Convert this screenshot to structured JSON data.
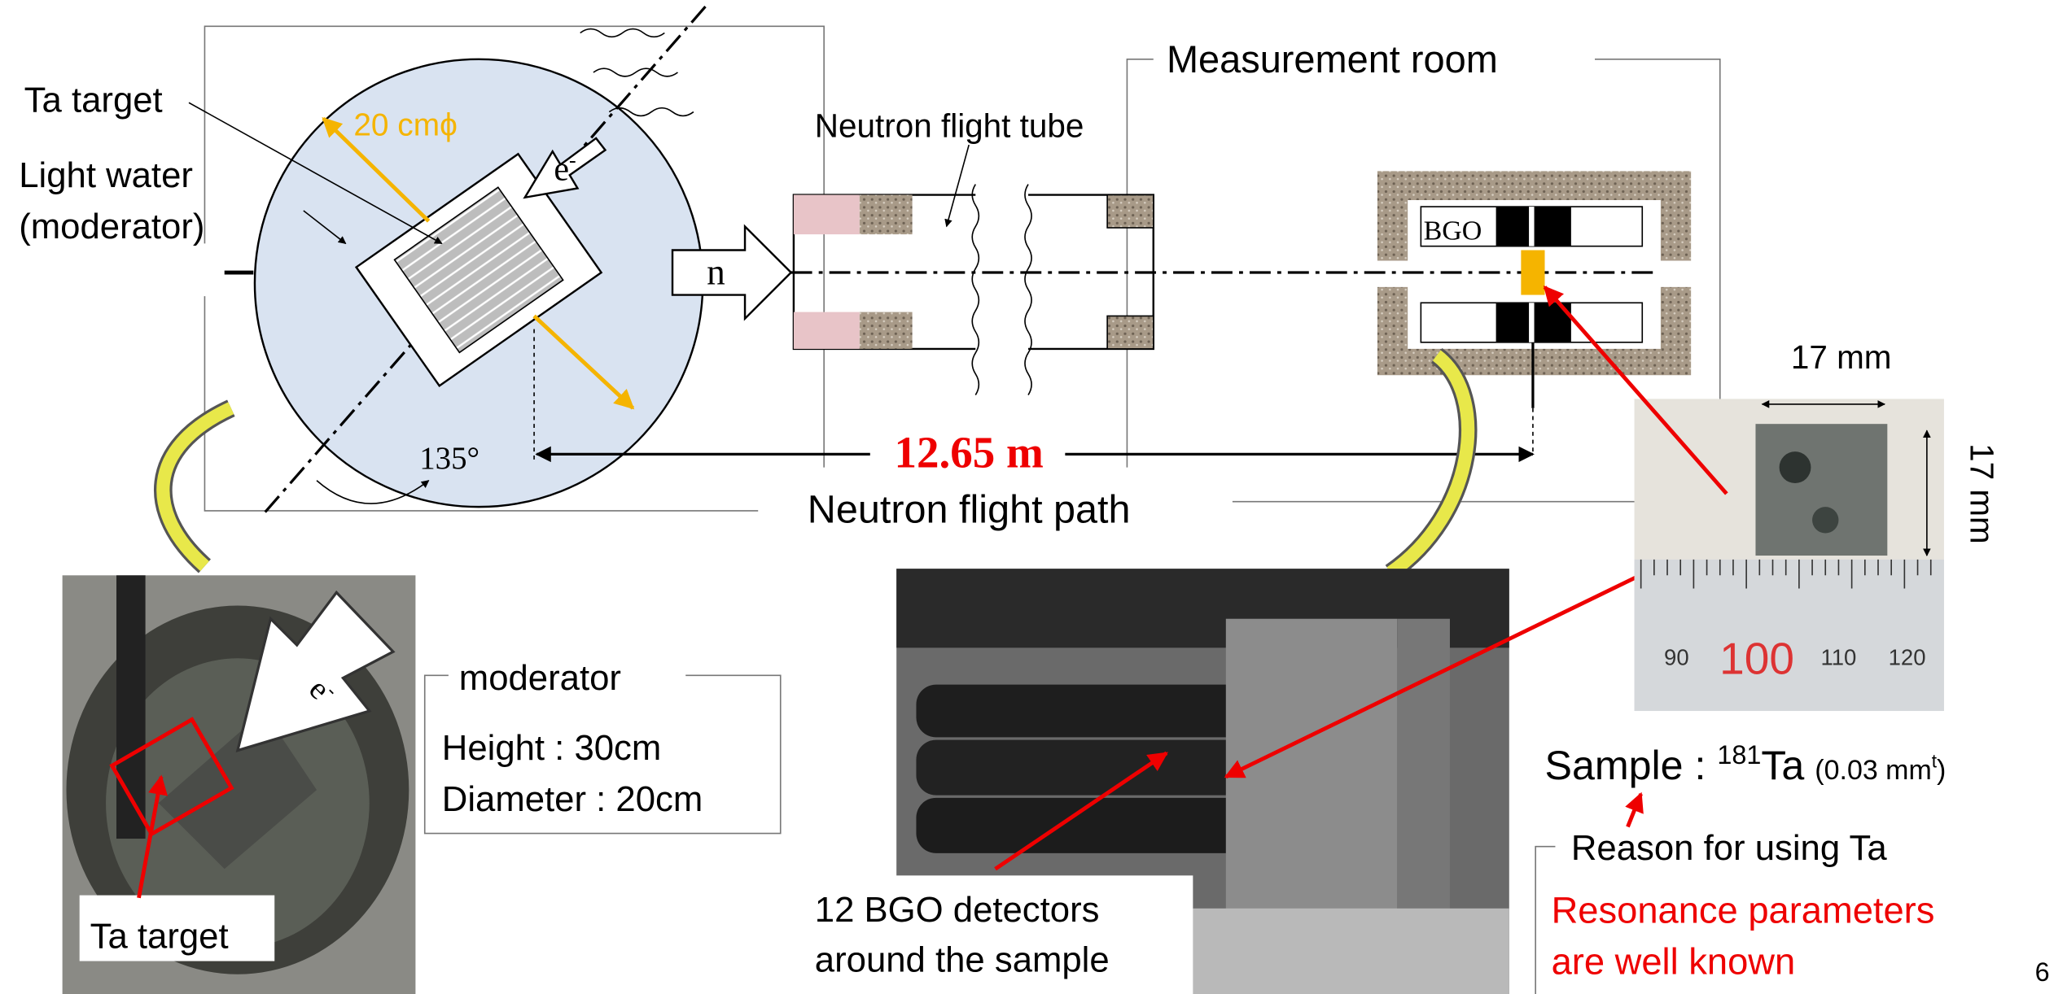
{
  "setup": {
    "ta_target": "Ta target",
    "light_water": "Light water",
    "moderator_paren": "(moderator)",
    "diameter": "20 cmϕ",
    "electron": "e",
    "electron_charge": "-",
    "neutron": "n",
    "flight_tube": "Neutron flight tube",
    "measurement_room": "Measurement room",
    "bgo": "BGO",
    "angle": "135°",
    "distance": "12.65 m",
    "flight_path": "Neutron flight path"
  },
  "moderator_box": {
    "title": "moderator",
    "lines": [
      "Height : 30cm",
      "Diameter : 20cm"
    ]
  },
  "target_photo": {
    "label": "Ta target",
    "electron": "e",
    "electron_charge": "-"
  },
  "detector_photo": {
    "caption": [
      "12 BGO detectors",
      "around the sample"
    ]
  },
  "sample_photo": {
    "width": "17 mm",
    "height": "17 mm",
    "ruler": [
      "90",
      "100",
      "110",
      "120"
    ]
  },
  "sample": {
    "prefix": "Sample : ",
    "mass_number": "181",
    "element": "Ta",
    "thickness_open": "(0.03 mm",
    "thickness_sup": "t",
    "thickness_close": ")"
  },
  "reason_box": {
    "title": "Reason for using Ta",
    "lines": [
      "Resonance parameters",
      "are well known"
    ]
  },
  "page_number": "6"
}
